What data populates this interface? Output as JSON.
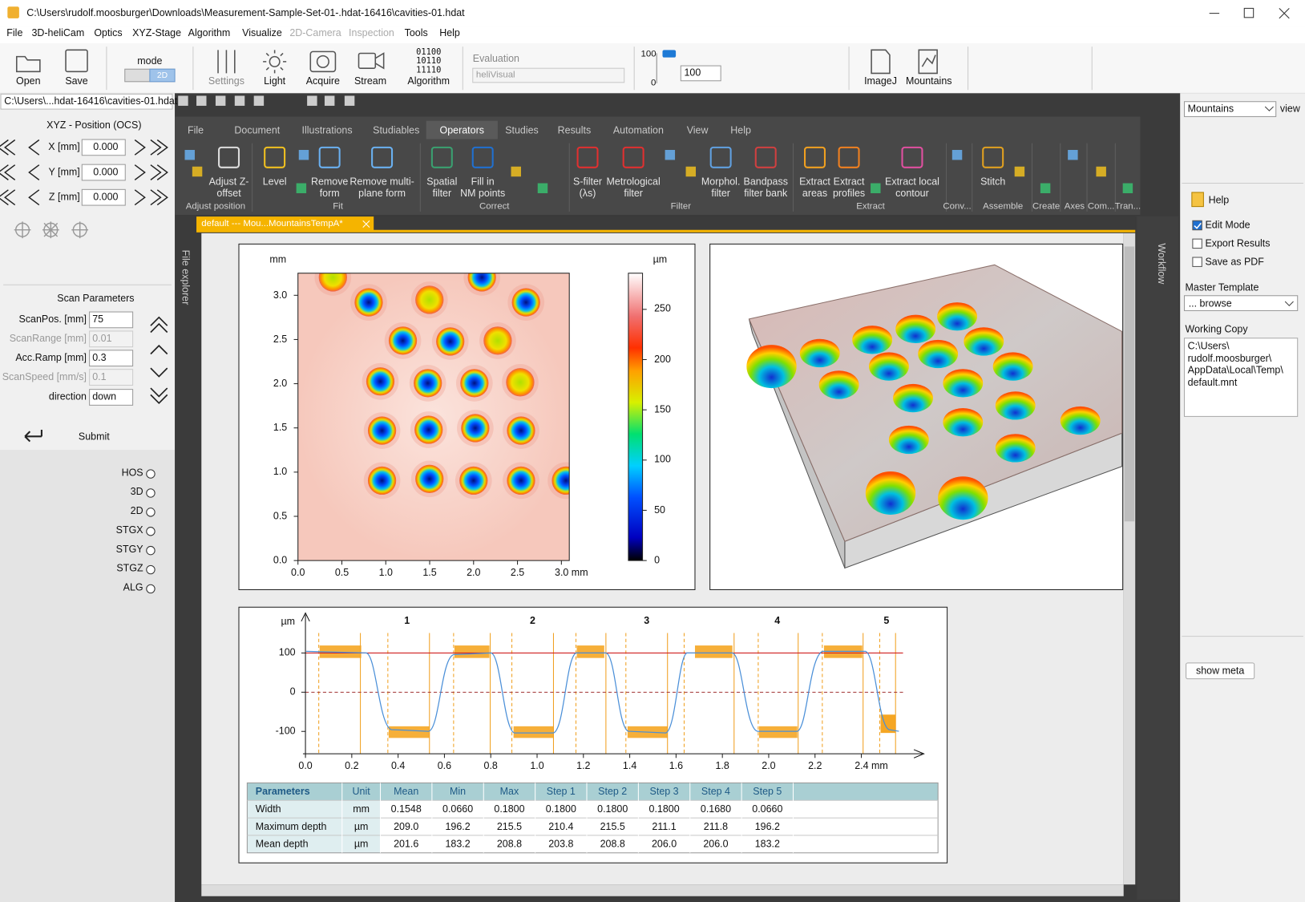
{
  "window": {
    "title": "C:\\Users\\rudolf.moosburger\\Downloads\\Measurement-Sample-Set-01-.hdat-16416\\cavities-01.hdat"
  },
  "menu": [
    "File",
    "3D-heliCam",
    "Optics",
    "XYZ-Stage",
    "Algorithm",
    "Visualize",
    "2D-Camera",
    "Inspection",
    "Tools",
    "Help"
  ],
  "menu_disabled": [
    6,
    7
  ],
  "toolbar": {
    "open": "Open",
    "save": "Save",
    "mode": "mode",
    "mode_value": "2D",
    "settings": "Settings",
    "light": "Light",
    "acquire": "Acquire",
    "stream": "Stream",
    "algorithm_bits": [
      "01100",
      "10110",
      "11110"
    ],
    "algorithm": "Algorithm",
    "evaluation": "Evaluation",
    "evaluation_value": "heliVisual",
    "slider_max": "100",
    "slider_min": "0",
    "spin_value": "100",
    "imagej": "ImageJ",
    "mountains": "Mountains"
  },
  "left_panel": {
    "file": "C:\\Users\\...hdat-16416\\cavities-01.hdat",
    "position_title": "XYZ - Position (OCS)",
    "axes": [
      {
        "label": "X [mm]",
        "value": "0.000"
      },
      {
        "label": "Y [mm]",
        "value": "0.000"
      },
      {
        "label": "Z [mm]",
        "value": "0.000"
      }
    ],
    "scan_title": "Scan Parameters",
    "scan_params": [
      {
        "label": "ScanPos. [mm]",
        "value": "75",
        "enabled": true
      },
      {
        "label": "ScanRange [mm]",
        "value": "0.01",
        "enabled": false
      },
      {
        "label": "Acc.Ramp [mm]",
        "value": "0.3",
        "enabled": true
      },
      {
        "label": "ScanSpeed [mm/s]",
        "value": "0.1",
        "enabled": false
      }
    ],
    "direction_label": "direction",
    "direction_value": "down",
    "submit": "Submit",
    "radios": [
      "HOS",
      "3D",
      "2D",
      "STGX",
      "STGY",
      "STGZ",
      "ALG"
    ]
  },
  "ribbon": {
    "tabs": [
      "File",
      "Document",
      "Illustrations",
      "Studiables",
      "Operators",
      "Studies",
      "Results",
      "Automation",
      "View",
      "Help"
    ],
    "active_tab": 4,
    "tools": [
      "Adjust Z-\noffset",
      "Level",
      "Remove\nform",
      "Remove multi-\nplane form",
      "Spatial\nfilter",
      "Fill in\nNM points",
      "S-filter\n(λs)",
      "Metrological\nfilter",
      "Morphol.\nfilter",
      "Bandpass\nfilter bank",
      "Extract\nareas",
      "Extract\nprofiles",
      "Extract local\ncontour",
      "Stitch"
    ],
    "groups": [
      "Adjust position",
      "Fit",
      "Correct",
      "Filter",
      "Extract",
      "Conv...",
      "Assemble",
      "Create",
      "Axes",
      "Com...",
      "Tran..."
    ]
  },
  "document_tab": "default --- Mou...MountainsTempA*",
  "side_tabs": {
    "left": "File explorer",
    "right": "Workflow"
  },
  "height_map": {
    "x_unit": "mm",
    "z_unit": "µm",
    "xlim": [
      0,
      3.09
    ],
    "ylim": [
      0,
      3.25
    ],
    "xticks": [
      {
        "value": 0,
        "label": "0.0"
      },
      {
        "value": 0.5,
        "label": "0.5"
      },
      {
        "value": 1,
        "label": "1.0"
      },
      {
        "value": 1.5,
        "label": "1.5"
      },
      {
        "value": 2,
        "label": "2.0"
      },
      {
        "value": 2.5,
        "label": "2.5"
      },
      {
        "value": 3,
        "label": "3.0 mm"
      }
    ],
    "yticks": [
      {
        "value": 0,
        "label": "0.0"
      },
      {
        "value": 0.5,
        "label": "0.5"
      },
      {
        "value": 1,
        "label": "1.0"
      },
      {
        "value": 1.5,
        "label": "1.5"
      },
      {
        "value": 2,
        "label": "2.0"
      },
      {
        "value": 2.5,
        "label": "2.5"
      },
      {
        "value": 3,
        "label": "3.0"
      }
    ],
    "zlim": [
      0,
      286
    ],
    "zticks": [
      0,
      50,
      100,
      150,
      200,
      250
    ]
  },
  "profile": {
    "y_unit": "µm",
    "xlim": [
      0,
      2.58
    ],
    "ylim": [
      -157,
      168
    ],
    "xticks": [
      {
        "value": 0,
        "label": "0.0"
      },
      {
        "value": 0.2,
        "label": "0.2"
      },
      {
        "value": 0.4,
        "label": "0.4"
      },
      {
        "value": 0.6,
        "label": "0.6"
      },
      {
        "value": 0.8,
        "label": "0.8"
      },
      {
        "value": 1,
        "label": "1.0"
      },
      {
        "value": 1.2,
        "label": "1.2"
      },
      {
        "value": 1.4,
        "label": "1.4"
      },
      {
        "value": 1.6,
        "label": "1.6"
      },
      {
        "value": 1.8,
        "label": "1.8"
      },
      {
        "value": 2,
        "label": "2.0"
      },
      {
        "value": 2.2,
        "label": "2.2"
      },
      {
        "value": 2.4,
        "label": "2.4 mm"
      }
    ],
    "yticks": [
      -100,
      0,
      100
    ],
    "steps": [
      "1",
      "2",
      "3",
      "4",
      "5"
    ]
  },
  "table": {
    "header": [
      "Parameters",
      "Unit",
      "Mean",
      "Min",
      "Max",
      "Step 1",
      "Step 2",
      "Step 3",
      "Step 4",
      "Step 5"
    ],
    "rows": [
      [
        "Width",
        "mm",
        "0.1548",
        "0.0660",
        "0.1800",
        "0.1800",
        "0.1800",
        "0.1800",
        "0.1680",
        "0.0660"
      ],
      [
        "Maximum depth",
        "µm",
        "209.0",
        "196.2",
        "215.5",
        "210.4",
        "215.5",
        "211.1",
        "211.8",
        "196.2"
      ],
      [
        "Mean depth",
        "µm",
        "201.6",
        "183.2",
        "208.8",
        "203.8",
        "208.8",
        "206.0",
        "206.0",
        "183.2"
      ]
    ]
  },
  "right_panel": {
    "view_select": "Mountains",
    "view": "view",
    "help": "Help",
    "options": [
      {
        "label": "Edit Mode",
        "checked": true
      },
      {
        "label": "Export Results",
        "checked": false
      },
      {
        "label": "Save as PDF",
        "checked": false
      }
    ],
    "master_template": "Master Template",
    "template_value": "... browse",
    "working_copy": "Working Copy",
    "working_copy_path": [
      "C:\\Users\\",
      "rudolf.moosburger\\",
      "AppData\\Local\\Temp\\",
      "default.mnt"
    ],
    "show_meta": "show meta"
  }
}
